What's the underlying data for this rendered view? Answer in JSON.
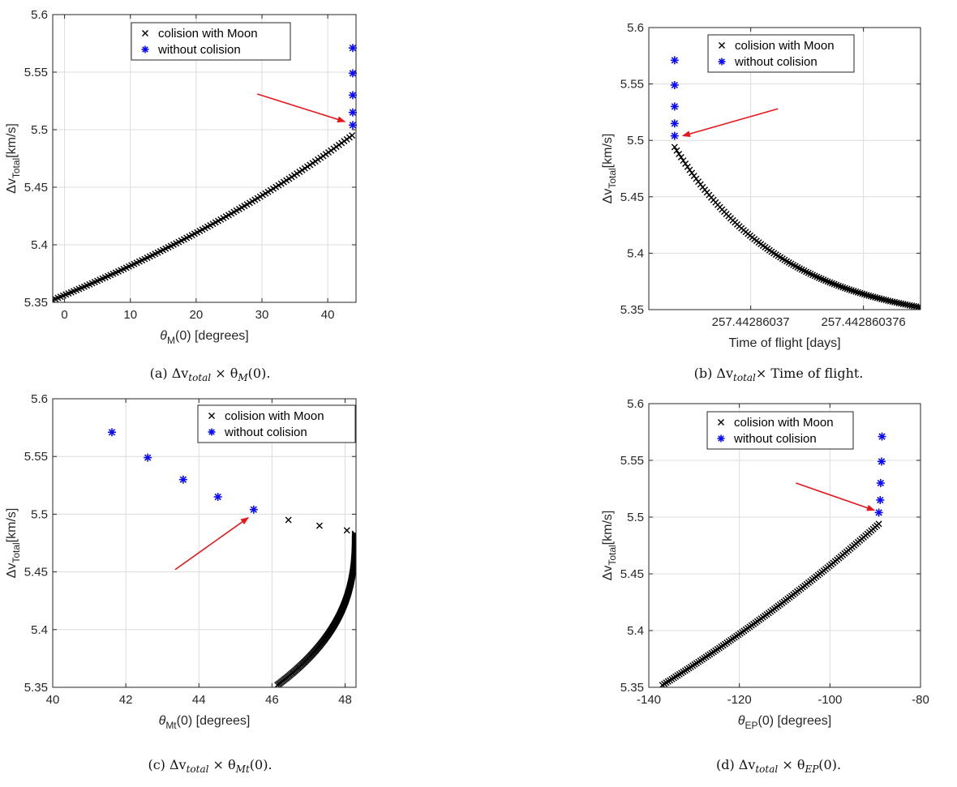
{
  "chart_data": [
    {
      "id": "a",
      "type": "scatter",
      "xlabel": "θ",
      "xlabel_sub": "M",
      "xlabel_tail": "(0) [degrees]",
      "ylabel": "Δv",
      "ylabel_sub": "Total",
      "ylabel_tail": "[km/s]",
      "xlim": [
        -1.8,
        44.3
      ],
      "ylim": [
        5.35,
        5.6
      ],
      "xticks": [
        0,
        10,
        20,
        30,
        40
      ],
      "xtick_labels": [
        "0",
        "10",
        "20",
        "30",
        "40"
      ],
      "yticks": [
        5.35,
        5.4,
        5.45,
        5.5,
        5.55,
        5.6
      ],
      "ytick_labels": [
        "5.35",
        "5.4",
        "5.45",
        "5.5",
        "5.55",
        "5.6"
      ],
      "legend": [
        "colision with Moon",
        "without colision"
      ],
      "legend_position": "top-center",
      "caption": "(a) Δv",
      "caption_sub": "total",
      "caption_tail": " × θ",
      "caption_sub2": "M",
      "caption_end": "(0).",
      "curve": {
        "x0": -1.8,
        "x1": 43.7,
        "y0": 5.352,
        "y1": 5.495,
        "shape": "convex",
        "k": 0.9
      },
      "collision_extra": [],
      "without_collision": {
        "x": [
          43.8,
          43.8,
          43.8,
          43.8,
          43.8
        ],
        "y": [
          5.504,
          5.515,
          5.53,
          5.549,
          5.571
        ]
      },
      "arrow": {
        "from": [
          29.3,
          5.531
        ],
        "to": [
          42.6,
          5.507
        ]
      }
    },
    {
      "id": "b",
      "type": "scatter",
      "xlabel": "Time of flight [days]",
      "xlabel_sub": "",
      "xlabel_tail": "",
      "ylabel": "Δv",
      "ylabel_sub": "Total",
      "ylabel_tail": "[km/s]",
      "xlim": [
        0,
        1
      ],
      "ylim": [
        5.35,
        5.6
      ],
      "xticks": [
        0.375,
        0.79
      ],
      "xtick_labels": [
        "257.44286037",
        "257.442860376"
      ],
      "yticks": [
        5.35,
        5.4,
        5.45,
        5.5,
        5.55,
        5.6
      ],
      "ytick_labels": [
        "5.35",
        "5.4",
        "5.45",
        "5.5",
        "5.55",
        "5.6"
      ],
      "legend": [
        "colision with Moon",
        "without colision"
      ],
      "legend_position": "top-right",
      "caption": "(b) Δv",
      "caption_sub": "total",
      "caption_tail": "× Time of flight.",
      "caption_sub2": "",
      "caption_end": "",
      "curve": {
        "x0": 0.095,
        "x1": 1.0,
        "y0": 5.494,
        "y1": 5.352,
        "shape": "decay",
        "k": 2.2
      },
      "collision_extra": [],
      "without_collision": {
        "x": [
          0.095,
          0.095,
          0.095,
          0.095,
          0.095
        ],
        "y": [
          5.504,
          5.515,
          5.53,
          5.549,
          5.571
        ]
      },
      "arrow": {
        "from": [
          0.475,
          5.528
        ],
        "to": [
          0.125,
          5.504
        ]
      }
    },
    {
      "id": "c",
      "type": "scatter",
      "xlabel": "θ",
      "xlabel_sub": "Mt",
      "xlabel_tail": "(0) [degrees]",
      "ylabel": "Δv",
      "ylabel_sub": "Total",
      "ylabel_tail": "[km/s]",
      "xlim": [
        40,
        48.3
      ],
      "ylim": [
        5.35,
        5.6
      ],
      "xticks": [
        40,
        42,
        44,
        46,
        48
      ],
      "xtick_labels": [
        "40",
        "42",
        "44",
        "46",
        "48"
      ],
      "yticks": [
        5.35,
        5.4,
        5.45,
        5.5,
        5.55,
        5.6
      ],
      "ytick_labels": [
        "5.35",
        "5.4",
        "5.45",
        "5.5",
        "5.55",
        "5.6"
      ],
      "legend": [
        "colision with Moon",
        "without colision"
      ],
      "legend_position": "top-right",
      "caption": "(c) Δv",
      "caption_sub": "total",
      "caption_tail": " × θ",
      "caption_sub2": "Mt",
      "caption_end": "(0).",
      "curve": {
        "x0": 46.15,
        "x1": 48.27,
        "y0": 5.352,
        "y1": 5.483,
        "shape": "concave",
        "k": 1.6
      },
      "collision_extra": [
        {
          "x": 46.45,
          "y": 5.495
        },
        {
          "x": 47.3,
          "y": 5.49
        },
        {
          "x": 48.05,
          "y": 5.486
        }
      ],
      "without_collision": {
        "x": [
          45.5,
          44.52,
          43.57,
          42.6,
          41.62
        ],
        "y": [
          5.504,
          5.515,
          5.53,
          5.549,
          5.571
        ]
      },
      "arrow": {
        "from": [
          43.35,
          5.452
        ],
        "to": [
          45.35,
          5.497
        ]
      }
    },
    {
      "id": "d",
      "type": "scatter",
      "xlabel": "θ",
      "xlabel_sub": "EP",
      "xlabel_tail": "(0) [degrees]",
      "ylabel": "Δv",
      "ylabel_sub": "Total",
      "ylabel_tail": "[km/s]",
      "xlim": [
        -140,
        -80
      ],
      "ylim": [
        5.35,
        5.6
      ],
      "xticks": [
        -140,
        -120,
        -100,
        -80
      ],
      "xtick_labels": [
        "-140",
        "-120",
        "-100",
        "-80"
      ],
      "yticks": [
        5.35,
        5.4,
        5.45,
        5.5,
        5.55,
        5.6
      ],
      "ytick_labels": [
        "5.35",
        "5.4",
        "5.45",
        "5.5",
        "5.55",
        "5.6"
      ],
      "legend": [
        "colision with Moon",
        "without colision"
      ],
      "legend_position": "top-center",
      "caption": "(d) Δv",
      "caption_sub": "total",
      "caption_tail": " × θ",
      "caption_sub2": "EP",
      "caption_end": "(0).",
      "curve": {
        "x0": -137,
        "x1": -89.2,
        "y0": 5.352,
        "y1": 5.494,
        "shape": "convex",
        "k": 0.55
      },
      "collision_extra": [],
      "without_collision": {
        "x": [
          -89.2,
          -88.9,
          -88.8,
          -88.6,
          -88.5
        ],
        "y": [
          5.504,
          5.515,
          5.53,
          5.549,
          5.571
        ]
      },
      "arrow": {
        "from": [
          -107.5,
          5.53
        ],
        "to": [
          -90.2,
          5.506
        ]
      }
    }
  ],
  "colors": {
    "collision": "#000000",
    "without": "#0a0aff",
    "arrow": "#e8161b"
  }
}
